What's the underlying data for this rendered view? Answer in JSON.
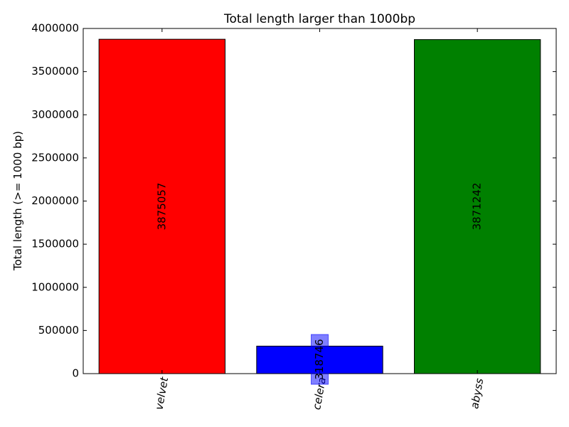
{
  "chart_data": {
    "type": "bar",
    "title": "Total length larger than 1000bp",
    "xlabel": "",
    "ylabel": "Total length (>= 1000 bp)",
    "categories": [
      "velvet",
      "celera",
      "abyss"
    ],
    "values": [
      3875057,
      318746,
      3871242
    ],
    "colors": [
      "#ff0000",
      "#0000ff",
      "#008000"
    ],
    "value_labels": [
      "3875057",
      "318746",
      "3871242"
    ],
    "ylim": [
      0,
      4000000
    ],
    "yticks": [
      "0",
      "500000",
      "1000000",
      "1500000",
      "2000000",
      "2500000",
      "3000000",
      "3500000",
      "4000000"
    ],
    "grid": false,
    "legend": "none"
  }
}
